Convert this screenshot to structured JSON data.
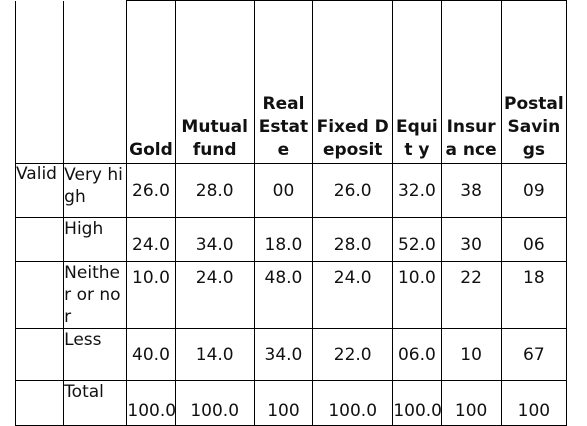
{
  "table": {
    "columns": [
      "Gold",
      "Mutual fund",
      "Real Estate",
      "Fixed Deposit",
      "Equit y",
      "Insura nce",
      "Postal Savin gs"
    ],
    "group_label": "Valid",
    "rows": [
      {
        "label": "Very high",
        "values": [
          "26.0",
          "28.0",
          "00",
          "26.0",
          "32.0",
          "38",
          "09"
        ]
      },
      {
        "label": "High",
        "values": [
          "24.0",
          "34.0",
          "18.0",
          "28.0",
          "52.0",
          "30",
          "06"
        ]
      },
      {
        "label": "Neithe r or nor",
        "values": [
          "10.0",
          "24.0",
          "48.0",
          "24.0",
          "10.0",
          "22",
          "18"
        ]
      },
      {
        "label": "Less",
        "values": [
          "40.0",
          "14.0",
          "34.0",
          "22.0",
          "06.0",
          "10",
          "67"
        ]
      },
      {
        "label": "Total",
        "values": [
          "100.0",
          "100.0",
          "100",
          "100.0",
          "100.0",
          "100",
          "100"
        ]
      }
    ]
  }
}
